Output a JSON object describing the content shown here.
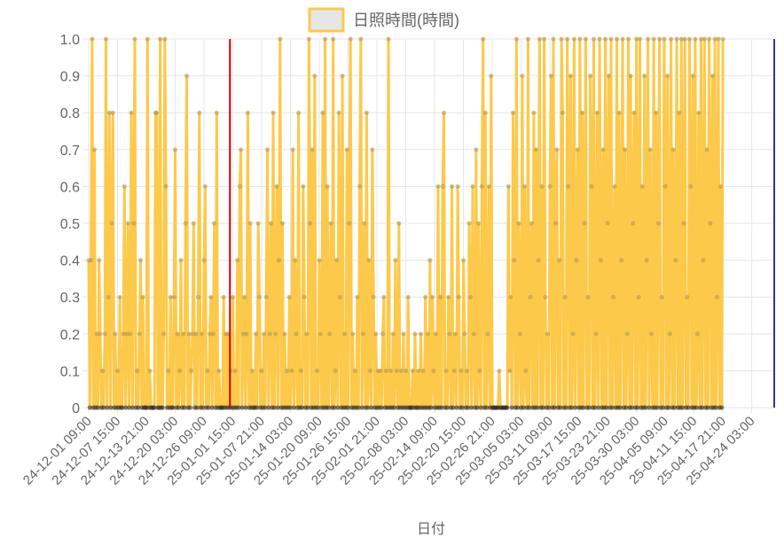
{
  "chart_data": {
    "type": "line",
    "xlabel": "日付",
    "ylabel": "",
    "ylim": [
      0,
      1.0
    ],
    "yticks": [
      "0",
      "0.1",
      "0.2",
      "0.3",
      "0.4",
      "0.5",
      "0.6",
      "0.7",
      "0.8",
      "0.9",
      "1.0"
    ],
    "xticks": [
      "24-12-01 09:00",
      "24-12-07 15:00",
      "24-12-13 21:00",
      "24-12-20 03:00",
      "24-12-26 09:00",
      "25-01-01 15:00",
      "25-01-07 21:00",
      "25-01-14 03:00",
      "25-01-20 09:00",
      "25-01-26 15:00",
      "25-02-01 21:00",
      "25-02-08 03:00",
      "25-02-14 09:00",
      "25-02-20 15:00",
      "25-02-26 21:00",
      "25-03-05 03:00",
      "25-03-11 09:00",
      "25-03-17 15:00",
      "25-03-23 21:00",
      "25-03-30 03:00",
      "25-04-05 09:00",
      "25-04-11 15:00",
      "25-04-17 21:00",
      "25-04-24 03:00"
    ],
    "x_range": [
      "24-12-01 09:00",
      "25-04-29 00:00"
    ],
    "grid": true,
    "legend_position": "top",
    "marker_lines": [
      {
        "x": "25-01-01 00:00",
        "color": "#cc0000"
      },
      {
        "x": "25-04-29 00:00",
        "color": "#3333aa"
      }
    ],
    "series": [
      {
        "name": "日照時間(時間)",
        "color": "#fdc94a",
        "fill": "#e6e6e6",
        "x_start": "24-12-01 09:00",
        "x_step_hours": 6,
        "values": [
          0.4,
          0,
          0.4,
          1,
          0,
          0.7,
          0,
          0.2,
          0,
          0.4,
          0.2,
          0,
          0.1,
          0,
          0.2,
          1,
          0,
          0.3,
          0.8,
          0,
          0.5,
          0.8,
          0,
          0.2,
          0,
          0.1,
          0,
          0.3,
          0,
          0,
          0.2,
          0.6,
          0,
          0.2,
          0.5,
          0,
          0.2,
          0.8,
          0,
          0.5,
          1,
          0,
          0.1,
          0,
          0.2,
          0.4,
          0,
          0.3,
          0,
          0,
          0,
          1,
          0,
          0.1,
          0,
          0,
          0,
          0,
          0.8,
          0.8,
          0,
          0,
          1,
          0,
          0,
          0.2,
          1,
          0.6,
          0,
          0.1,
          0,
          0.3,
          0,
          0,
          0.3,
          0.7,
          0,
          0.2,
          0,
          0.1,
          0.4,
          0,
          0.2,
          0,
          0.5,
          0.9,
          0,
          0.2,
          0,
          0.1,
          0.2,
          0.5,
          0,
          0.2,
          0,
          0.3,
          0.8,
          0,
          0.2,
          0,
          0.4,
          0.6,
          0,
          0.1,
          0,
          0.2,
          0.3,
          0,
          0.2,
          0.5,
          0,
          0.8,
          0,
          0.1,
          0,
          0,
          0,
          0.3,
          0,
          0.2,
          0,
          0.2,
          0,
          0.1,
          0,
          0.3,
          0,
          0.1,
          0,
          0.4,
          0,
          0.6,
          0.7,
          0,
          0.2,
          0.3,
          0,
          0.2,
          0.8,
          0,
          0.5,
          0,
          0.1,
          0,
          0,
          0.2,
          0,
          0.5,
          0.3,
          0,
          0.1,
          0,
          0.2,
          0,
          0.3,
          0.7,
          0,
          0.2,
          0.5,
          0,
          0.8,
          0,
          0.2,
          0.6,
          0,
          0.4,
          1,
          0,
          0.5,
          0,
          0.2,
          0,
          0.1,
          0,
          0.3,
          0,
          0.1,
          0.7,
          0,
          0.4,
          0.2,
          0,
          0.8,
          0,
          0.1,
          0,
          0.6,
          0.3,
          0,
          0.2,
          0,
          1,
          0.5,
          0,
          0.7,
          0,
          0.9,
          0,
          0.1,
          0,
          0.4,
          0.2,
          0,
          0.8,
          0,
          1,
          0,
          0.6,
          0,
          0.2,
          0.5,
          0,
          1,
          0,
          0.1,
          0.4,
          0,
          0.8,
          0.3,
          0,
          0.9,
          0,
          0.2,
          0,
          0.7,
          0,
          0.5,
          1,
          0,
          0.2,
          0,
          0.1,
          0,
          0.3,
          0,
          0.6,
          1,
          0,
          0.2,
          0.5,
          0,
          0.8,
          0,
          0.4,
          0.1,
          0,
          0.7,
          0.3,
          0,
          0.2,
          0,
          0.1,
          0,
          0.1,
          0,
          0.2,
          0.3,
          0,
          0.1,
          0,
          1,
          0,
          0.1,
          0,
          0.2,
          0,
          0.4,
          0.1,
          0,
          0.5,
          0,
          0.1,
          0,
          0.2,
          0,
          0.1,
          0,
          0.3,
          0,
          0,
          0,
          0.1,
          0,
          0.2,
          0,
          0,
          0.1,
          0,
          0.2,
          0,
          0.1,
          0,
          0.3,
          0,
          0.2,
          0,
          0.4,
          0,
          0.3,
          0.1,
          0,
          0.2,
          0,
          0.6,
          0,
          0.3,
          0,
          0.6,
          0.8,
          0,
          0.1,
          0,
          0.3,
          0.2,
          0,
          0.6,
          0,
          0.1,
          0.2,
          0,
          0.6,
          0.3,
          0,
          0.1,
          0,
          0.4,
          0.2,
          0,
          0.1,
          0,
          0.5,
          0.3,
          0,
          0.6,
          0.2,
          0,
          0.7,
          0,
          0.5,
          0.1,
          0,
          0.6,
          1,
          0,
          0.8,
          0,
          0.2,
          0.6,
          0,
          0.9,
          0,
          0,
          0,
          0,
          0,
          0,
          0.1,
          0,
          0,
          0,
          0,
          0,
          0,
          0,
          0.6,
          0.1,
          0.3,
          0,
          0.8,
          0.4,
          0,
          1,
          0,
          0.5,
          0.2,
          0,
          0.9,
          0,
          0.6,
          0.1,
          0,
          1,
          0,
          0.3,
          0.5,
          0,
          0.8,
          0,
          0.7,
          0,
          0.4,
          1,
          0,
          0.6,
          0,
          1,
          0.3,
          0,
          0.2,
          0,
          0.6,
          0.9,
          0,
          1,
          0,
          0.5,
          0.7,
          0,
          0.4,
          0,
          1,
          0.8,
          0,
          0.3,
          0,
          1,
          0.6,
          0,
          0.9,
          0,
          0.2,
          1,
          0,
          0.4,
          0.7,
          0,
          1,
          0,
          0.8,
          0,
          0.5,
          1,
          0,
          0.3,
          0,
          0.9,
          0.6,
          0,
          1,
          0,
          0.2,
          0.8,
          0,
          1,
          0.4,
          0,
          0.7,
          0,
          1,
          0,
          0.5,
          0.9,
          0,
          1,
          0,
          0.3,
          0.6,
          0,
          1,
          0,
          0.8,
          0,
          0.4,
          1,
          0,
          0.7,
          0,
          0.2,
          1,
          0,
          0.9,
          0,
          0.5,
          0.8,
          0,
          1,
          0,
          0.3,
          1,
          0,
          0.6,
          0,
          0.9,
          0,
          0.4,
          1,
          0,
          0.7,
          0.2,
          0,
          1,
          0,
          0.8,
          0,
          0.5,
          1,
          0,
          0.3,
          0,
          1,
          0.6,
          0,
          0.9,
          0,
          0.2,
          1,
          0,
          0.7,
          0,
          0.4,
          1,
          0,
          0.8,
          0,
          1,
          0,
          0.5,
          1,
          0,
          0.3,
          0,
          1,
          0.6,
          0,
          0.9,
          0,
          1,
          0,
          0.2,
          0.8,
          0,
          1,
          0,
          0.4,
          1,
          0,
          0.7,
          0,
          1,
          0.5,
          0,
          0.9,
          0,
          1,
          0,
          0.3,
          1,
          0,
          0.6,
          0,
          1
        ]
      }
    ]
  }
}
